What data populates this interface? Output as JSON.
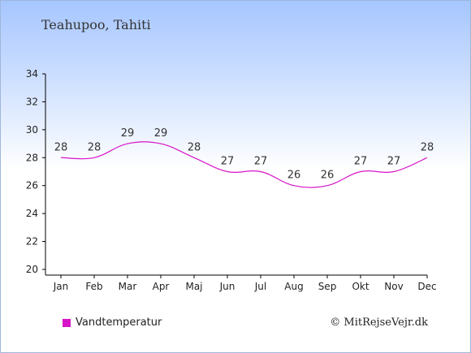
{
  "title": "Teahupoo, Tahiti",
  "legend": {
    "label": "Vandtemperatur",
    "color": "#d814c8"
  },
  "copyright": "© MitRejseVejr.dk",
  "chart_data": {
    "type": "line",
    "categories": [
      "Jan",
      "Feb",
      "Mar",
      "Apr",
      "Maj",
      "Jun",
      "Jul",
      "Aug",
      "Sep",
      "Okt",
      "Nov",
      "Dec"
    ],
    "series": [
      {
        "name": "Vandtemperatur",
        "values": [
          28,
          28,
          29,
          29,
          28,
          27,
          27,
          26,
          26,
          27,
          27,
          28
        ],
        "color": "#d814c8"
      }
    ],
    "ylim": [
      20,
      34
    ],
    "yticks": [
      20,
      22,
      24,
      26,
      28,
      30,
      32,
      34
    ],
    "xlabel": "",
    "ylabel": "",
    "grid": false,
    "legend_position": "bottom-left"
  }
}
